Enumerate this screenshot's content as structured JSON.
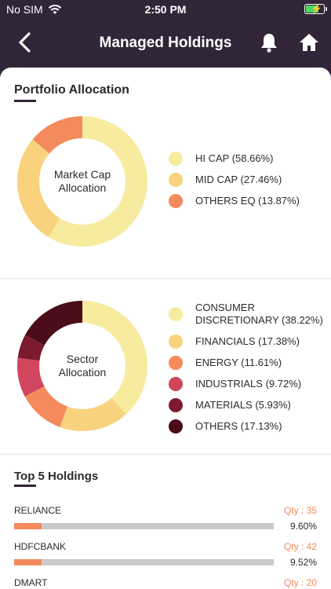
{
  "status": {
    "carrier": "No SIM",
    "time": "2:50 PM",
    "battery_level": 0.8
  },
  "nav": {
    "title": "Managed Holdings",
    "back_icon": "chevron-left-icon",
    "bell_icon": "bell-icon",
    "home_icon": "home-icon"
  },
  "portfolio": {
    "title": "Portfolio Allocation",
    "center_label_1": "Market Cap",
    "center_label_2": "Allocation",
    "legend": [
      {
        "label": "HI CAP (58.66%)",
        "value": 58.66,
        "color": "#f7eba0"
      },
      {
        "label": "MID CAP (27.46%)",
        "value": 27.46,
        "color": "#f8d27d"
      },
      {
        "label": "OTHERS EQ (13.87%)",
        "value": 13.87,
        "color": "#f58a5c"
      }
    ]
  },
  "sector": {
    "center_label_1": "Sector",
    "center_label_2": "Allocation",
    "legend": [
      {
        "label_1": "CONSUMER",
        "label_2": "DISCRETIONARY (38.22%)",
        "value": 38.22,
        "color": "#f7eba0"
      },
      {
        "label_1": "FINANCIALS (17.38%)",
        "value": 17.38,
        "color": "#f8d27d"
      },
      {
        "label_1": "ENERGY (11.61%)",
        "value": 11.61,
        "color": "#f58a5c"
      },
      {
        "label_1": "INDUSTRIALS (9.72%)",
        "value": 9.72,
        "color": "#d1455f"
      },
      {
        "label_1": "MATERIALS (5.93%)",
        "value": 5.93,
        "color": "#7d1a2e"
      },
      {
        "label_1": "OTHERS (17.13%)",
        "value": 17.13,
        "color": "#4a0d19"
      }
    ]
  },
  "holdings": {
    "title": "Top 5 Holdings",
    "items": [
      {
        "name": "RELIANCE",
        "qty": "Qty : 35",
        "pct": "9.60%",
        "value": 9.6
      },
      {
        "name": "HDFCBANK",
        "qty": "Qty : 42",
        "pct": "9.52%",
        "value": 9.52
      },
      {
        "name": "DMART",
        "qty": "Qty : 20",
        "pct": "",
        "value": 0
      }
    ]
  }
}
